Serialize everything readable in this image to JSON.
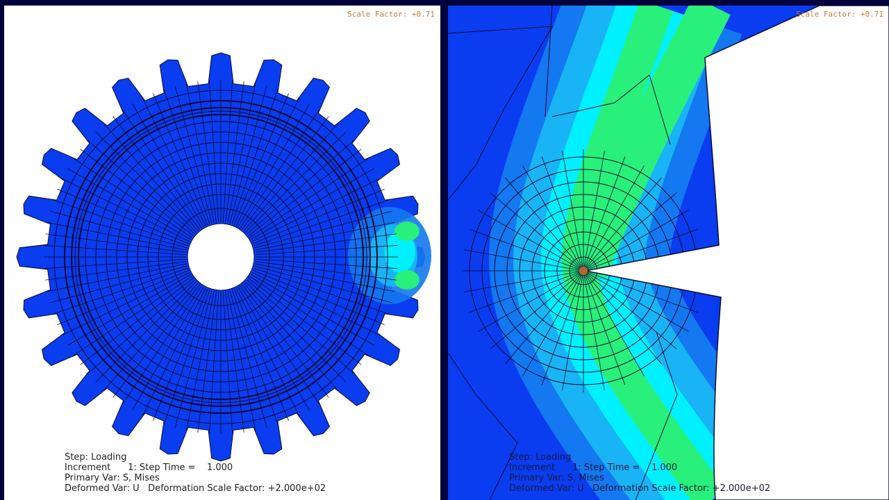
{
  "viewports": [
    {
      "scale_factor": "Scale Factor: +0.71",
      "info": {
        "step": "Step: Loading",
        "increment": "Increment      1: Step Time =    1.000",
        "primary_var": "Primary Var: S, Mises",
        "deformed_var": "Deformed Var: U   Deformation Scale Factor: +2.000e+02"
      }
    },
    {
      "scale_factor": "Scale Factor: +0.71",
      "info": {
        "step": "Step: Loading",
        "increment": "Increment      1: Step Time =    1.000",
        "primary_var": "Primary Var: S, Mises",
        "deformed_var": "Deformed Var: U   Deformation Scale Factor: +2.000e+02"
      }
    }
  ],
  "colors": {
    "frame": "#00003a",
    "low": "#0a3cf0",
    "mid_low": "#1478f0",
    "mid": "#19b4f5",
    "cyan": "#00f0ff",
    "green": "#28f07a",
    "mesh": "#0a0a30",
    "scale_text": "#c8783c"
  }
}
